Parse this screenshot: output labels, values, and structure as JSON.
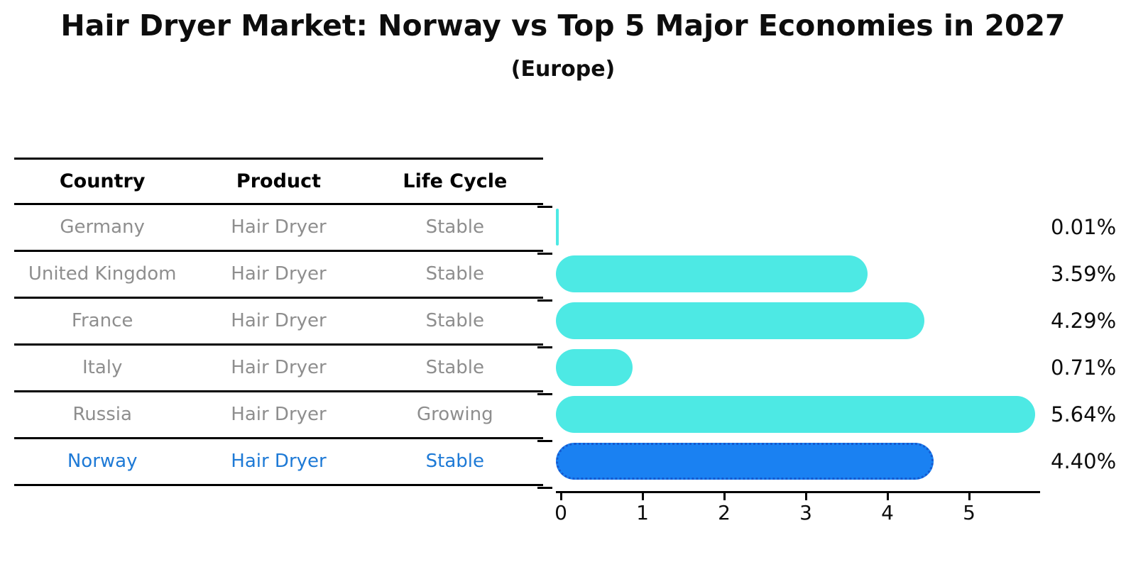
{
  "title": "Hair Dryer Market: Norway vs Top 5 Major Economies in 2027",
  "subtitle": "(Europe)",
  "table": {
    "headers": {
      "country": "Country",
      "product": "Product",
      "life_cycle": "Life Cycle"
    },
    "rows": [
      {
        "country": "Germany",
        "product": "Hair Dryer",
        "life_cycle": "Stable",
        "highlighted": false
      },
      {
        "country": "United Kingdom",
        "product": "Hair Dryer",
        "life_cycle": "Stable",
        "highlighted": false
      },
      {
        "country": "France",
        "product": "Hair Dryer",
        "life_cycle": "Stable",
        "highlighted": false
      },
      {
        "country": "Italy",
        "product": "Hair Dryer",
        "life_cycle": "Stable",
        "highlighted": false
      },
      {
        "country": "Russia",
        "product": "Hair Dryer",
        "life_cycle": "Growing",
        "highlighted": false
      },
      {
        "country": "Norway",
        "product": "Hair Dryer",
        "life_cycle": "Stable",
        "highlighted": true
      }
    ]
  },
  "chart_data": {
    "type": "bar",
    "orientation": "horizontal",
    "categories": [
      "Germany",
      "United Kingdom",
      "France",
      "Italy",
      "Russia",
      "Norway"
    ],
    "values": [
      0.01,
      3.59,
      4.29,
      0.71,
      5.64,
      4.4
    ],
    "value_labels": [
      "0.01%",
      "3.59%",
      "4.29%",
      "0.71%",
      "5.64%",
      "4.40%"
    ],
    "x_ticks": [
      "0",
      "1",
      "2",
      "3",
      "4",
      "5"
    ],
    "xlim": [
      0,
      5.9
    ],
    "grid": false,
    "legend": false,
    "highlight_index": 5,
    "bar_color": "#4DE9E4",
    "highlight_color": "#1A81F2",
    "highlight_border_color": "#1559CF",
    "highlight_text_color": "#1E7AD6"
  }
}
